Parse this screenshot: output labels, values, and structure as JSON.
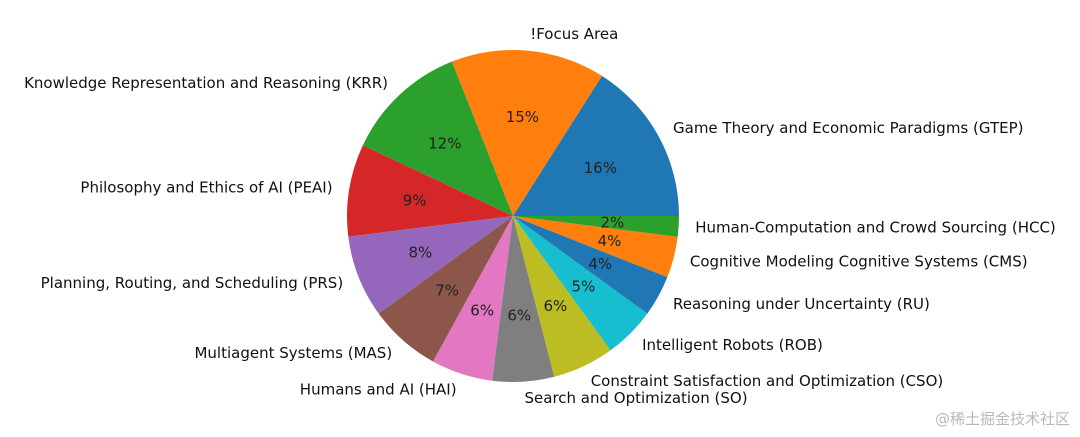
{
  "chart_data": {
    "type": "pie",
    "title": "",
    "start_angle_deg": 0,
    "direction": "counterclockwise",
    "slices": [
      {
        "label": "Game Theory and Economic Paradigms (GTEP)",
        "value": 16,
        "pct_label": "16%",
        "color": "#1f77b4"
      },
      {
        "label": "!Focus Area",
        "value": 15,
        "pct_label": "15%",
        "color": "#ff7f0e"
      },
      {
        "label": "Knowledge Representation and Reasoning (KRR)",
        "value": 12,
        "pct_label": "12%",
        "color": "#2ca02c"
      },
      {
        "label": "Philosophy and Ethics of AI (PEAI)",
        "value": 9,
        "pct_label": "9%",
        "color": "#d62728"
      },
      {
        "label": "Planning, Routing, and Scheduling (PRS)",
        "value": 8,
        "pct_label": "8%",
        "color": "#9467bd"
      },
      {
        "label": "Multiagent Systems (MAS)",
        "value": 7,
        "pct_label": "7%",
        "color": "#8c564b"
      },
      {
        "label": "Humans and AI (HAI)",
        "value": 6,
        "pct_label": "6%",
        "color": "#e377c2"
      },
      {
        "label": "Search and Optimization (SO)",
        "value": 6,
        "pct_label": "6%",
        "color": "#7f7f7f"
      },
      {
        "label": "Constraint Satisfaction and Optimization (CSO)",
        "value": 6,
        "pct_label": "6%",
        "color": "#bcbd22"
      },
      {
        "label": "Intelligent Robots (ROB)",
        "value": 5,
        "pct_label": "5%",
        "color": "#17becf"
      },
      {
        "label": "Reasoning under Uncertainty (RU)",
        "value": 4,
        "pct_label": "4%",
        "color": "#1f77b4"
      },
      {
        "label": "Cognitive Modeling Cognitive Systems (CMS)",
        "value": 4,
        "pct_label": "4%",
        "color": "#ff7f0e"
      },
      {
        "label": "Human-Computation and Crowd Sourcing (HCC)",
        "value": 2,
        "pct_label": "2%",
        "color": "#2ca02c"
      }
    ]
  },
  "watermark": {
    "text": "@稀土掘金技术社区"
  }
}
